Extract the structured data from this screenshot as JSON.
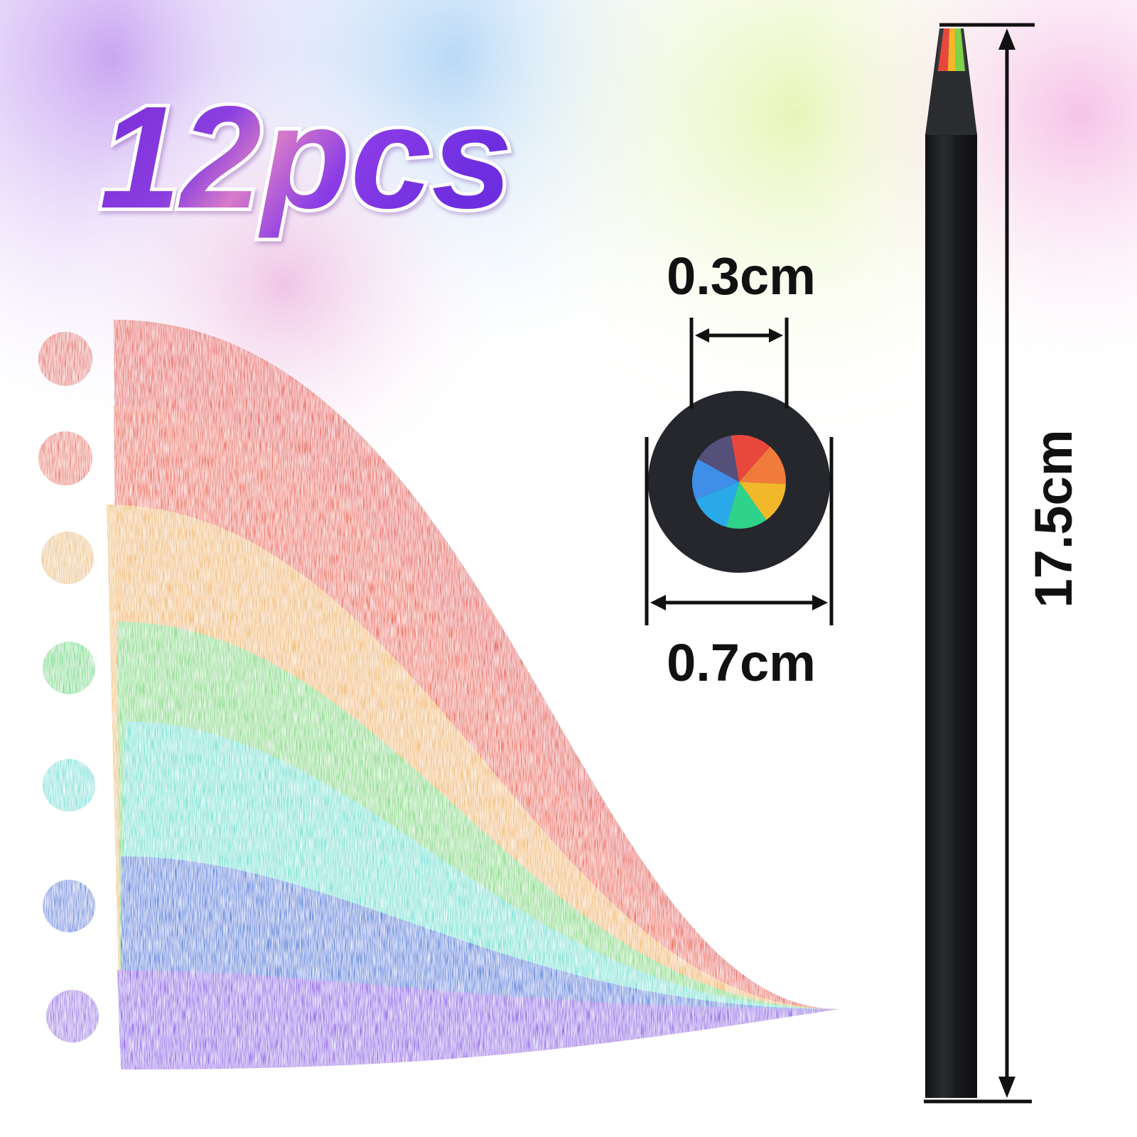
{
  "title": "12pcs",
  "dimensions": {
    "lead_diameter": "0.3cm",
    "pencil_diameter": "0.7cm",
    "length": "17.5cm"
  }
}
